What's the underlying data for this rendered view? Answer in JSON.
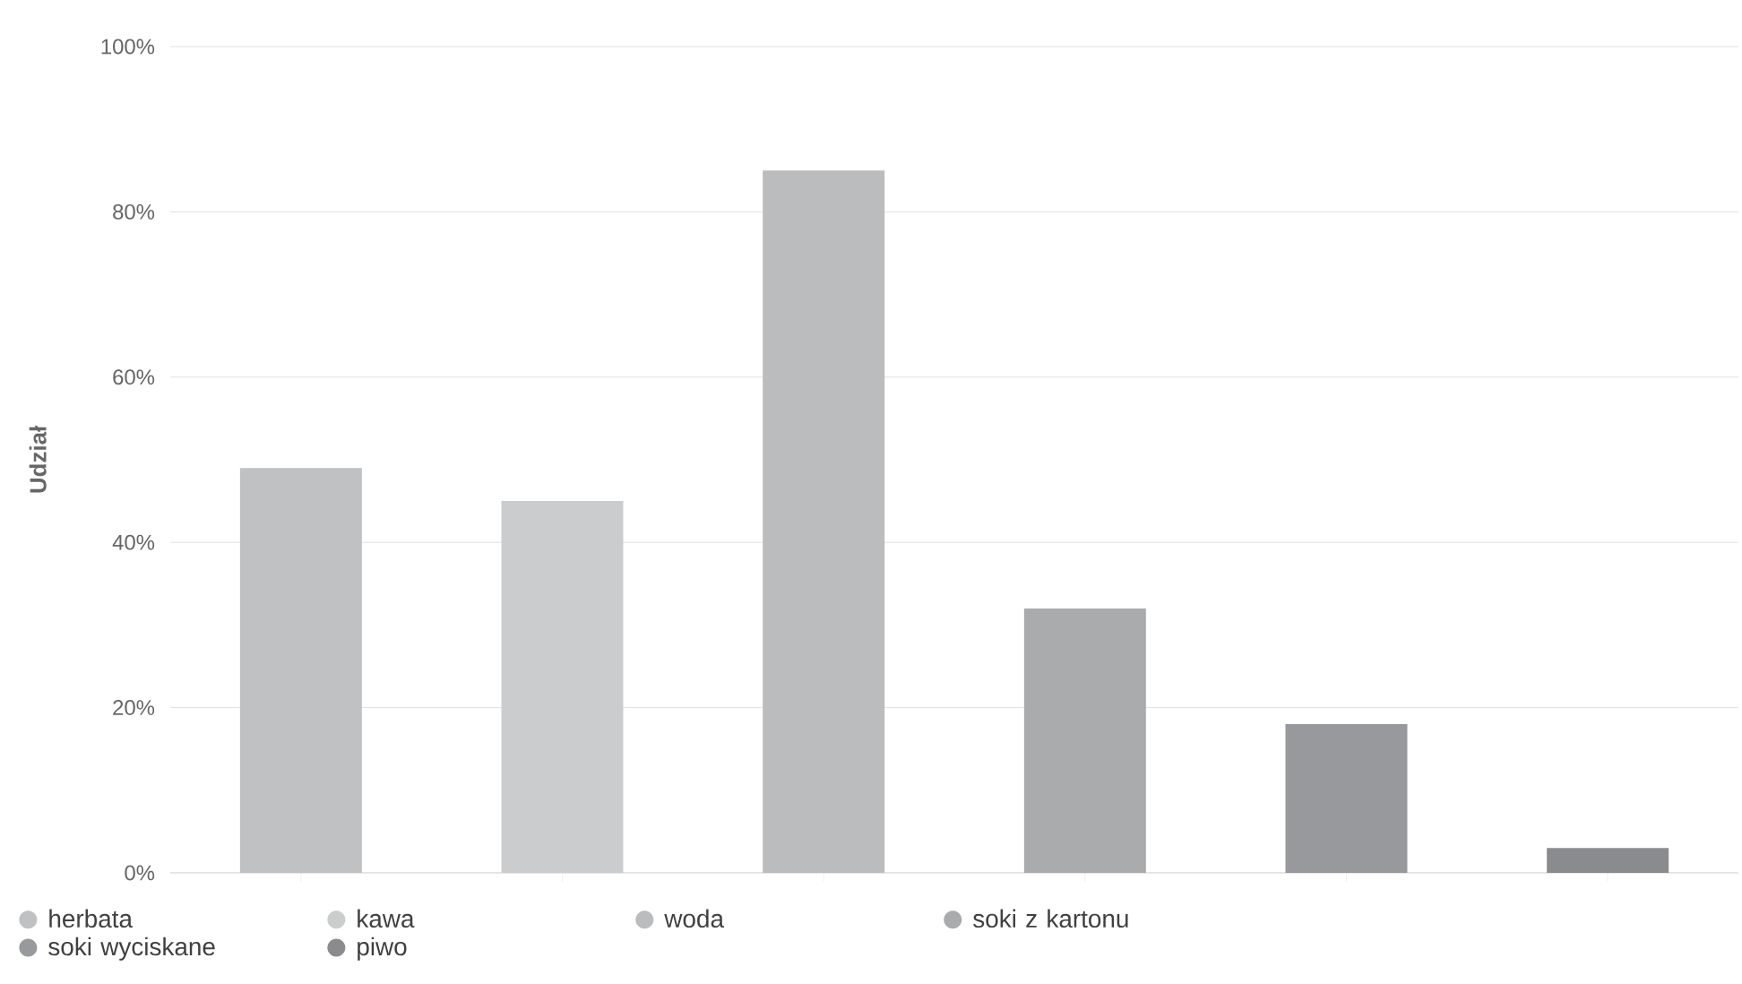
{
  "chart_data": {
    "type": "bar",
    "ylabel": "Udział",
    "categories": [
      null,
      null,
      null,
      null,
      null,
      null
    ],
    "series": [
      {
        "name": "herbata",
        "color": "#c0c1c3",
        "values": [
          49,
          null,
          null,
          null,
          null,
          null
        ]
      },
      {
        "name": "kawa",
        "color": "#cbcccd",
        "values": [
          null,
          45,
          null,
          null,
          null,
          null
        ]
      },
      {
        "name": "woda",
        "color": "#bbbcbe",
        "values": [
          null,
          null,
          85,
          null,
          null,
          null
        ]
      },
      {
        "name": "soki z kartonu",
        "color": "#aaabad",
        "values": [
          null,
          null,
          null,
          32,
          null,
          null
        ]
      },
      {
        "name": "soki wyciskane",
        "color": "#98999c",
        "values": [
          null,
          null,
          null,
          null,
          18,
          null
        ]
      },
      {
        "name": "piwo",
        "color": "#8a8b8e",
        "values": [
          null,
          null,
          null,
          null,
          null,
          3
        ]
      }
    ],
    "ylim": [
      0,
      100
    ],
    "yticks": [
      {
        "value": 0,
        "label": "0%"
      },
      {
        "value": 20,
        "label": "20%"
      },
      {
        "value": 40,
        "label": "40%"
      },
      {
        "value": 60,
        "label": "60%"
      },
      {
        "value": 80,
        "label": "80%"
      },
      {
        "value": 100,
        "label": "100%"
      }
    ],
    "grid": "y",
    "legend": "bottom left"
  }
}
